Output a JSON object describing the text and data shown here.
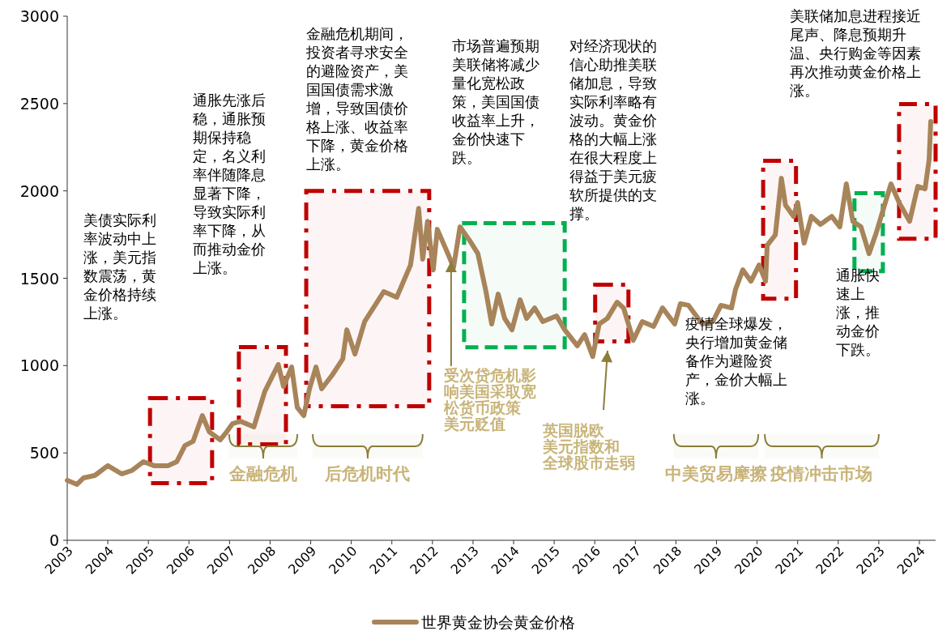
{
  "chart_data": {
    "type": "line",
    "xlim": [
      2003,
      2024.4
    ],
    "ylim": [
      0,
      3000
    ],
    "xticks": [
      2003,
      2004,
      2005,
      2006,
      2007,
      2008,
      2009,
      2010,
      2011,
      2012,
      2013,
      2014,
      2015,
      2016,
      2017,
      2018,
      2019,
      2020,
      2021,
      2022,
      2023,
      2024
    ],
    "yticks": [
      0,
      500,
      1000,
      1500,
      2000,
      2500,
      3000
    ],
    "legend": "bottom",
    "series": [
      {
        "name": "世界黄金协会黄金价格",
        "color": "#a8845a",
        "x": [
          2003.0,
          2003.24,
          2003.4,
          2003.68,
          2004.0,
          2004.34,
          2004.6,
          2004.88,
          2005.14,
          2005.48,
          2005.7,
          2005.9,
          2006.1,
          2006.33,
          2006.5,
          2006.77,
          2006.93,
          2007.07,
          2007.27,
          2007.6,
          2007.87,
          2008.2,
          2008.33,
          2008.53,
          2008.67,
          2008.83,
          2008.97,
          2009.13,
          2009.27,
          2009.53,
          2009.79,
          2009.89,
          2010.09,
          2010.33,
          2010.8,
          2011.12,
          2011.46,
          2011.66,
          2011.76,
          2011.88,
          2012.02,
          2012.12,
          2012.38,
          2012.52,
          2012.68,
          2012.92,
          2013.12,
          2013.32,
          2013.46,
          2013.62,
          2013.78,
          2013.96,
          2014.16,
          2014.32,
          2014.52,
          2014.72,
          2015.06,
          2015.26,
          2015.57,
          2015.75,
          2015.95,
          2016.11,
          2016.31,
          2016.55,
          2016.71,
          2016.95,
          2017.17,
          2017.45,
          2017.67,
          2017.97,
          2018.11,
          2018.31,
          2018.65,
          2018.91,
          2019.11,
          2019.37,
          2019.47,
          2019.65,
          2019.85,
          2020.05,
          2020.21,
          2020.25,
          2020.45,
          2020.6,
          2020.7,
          2020.9,
          2021.0,
          2021.16,
          2021.34,
          2021.56,
          2021.84,
          2022.04,
          2022.2,
          2022.36,
          2022.56,
          2022.76,
          2022.94,
          2023.1,
          2023.3,
          2023.5,
          2023.76,
          2023.96,
          2024.14,
          2024.24,
          2024.28
        ],
        "values": [
          343,
          320,
          357,
          371,
          427,
          380,
          400,
          450,
          427,
          427,
          450,
          542,
          566,
          714,
          621,
          575,
          621,
          667,
          681,
          649,
          853,
          1006,
          881,
          992,
          760,
          714,
          867,
          992,
          867,
          946,
          1038,
          1205,
          1066,
          1252,
          1423,
          1391,
          1576,
          1900,
          1609,
          1826,
          1548,
          1780,
          1641,
          1562,
          1794,
          1715,
          1641,
          1423,
          1238,
          1409,
          1270,
          1205,
          1377,
          1270,
          1330,
          1252,
          1284,
          1205,
          1113,
          1177,
          1052,
          1238,
          1270,
          1363,
          1330,
          1145,
          1252,
          1224,
          1330,
          1238,
          1354,
          1345,
          1238,
          1252,
          1345,
          1330,
          1437,
          1548,
          1483,
          1576,
          1483,
          1688,
          1748,
          2072,
          1919,
          1854,
          1933,
          1701,
          1854,
          1808,
          1854,
          1794,
          2040,
          1826,
          1794,
          1641,
          1762,
          1887,
          2040,
          1933,
          1826,
          2026,
          2012,
          2179,
          2397
        ]
      }
    ],
    "bands": [
      {
        "axis": "x",
        "from": 2005.04,
        "to": 2006.57,
        "color": "#c00000"
      },
      {
        "axis": "x",
        "from": 2007.23,
        "to": 2008.39,
        "color": "#c00000"
      },
      {
        "axis": "x",
        "from": 2008.89,
        "to": 2011.92,
        "color": "#c00000"
      },
      {
        "axis": "x",
        "from": 2012.78,
        "to": 2015.26,
        "color": "#00b050"
      },
      {
        "axis": "x",
        "from": 2016.01,
        "to": 2016.83,
        "color": "#c00000"
      },
      {
        "axis": "x",
        "from": 2020.15,
        "to": 2020.96,
        "color": "#c00000"
      },
      {
        "axis": "x",
        "from": 2022.4,
        "to": 2023.1,
        "color": "#00b050"
      },
      {
        "axis": "x",
        "from": 2023.5,
        "to": 2024.4,
        "color": "#c00000"
      },
      {
        "axis": "x",
        "from": 2006.99,
        "to": 2008.67,
        "label": "金融危机",
        "color": "#8b7d3a"
      },
      {
        "axis": "x",
        "from": 2009.05,
        "to": 2011.76,
        "label": "后危机时代",
        "color": "#8b7d3a"
      },
      {
        "axis": "x",
        "from": 2017.95,
        "to": 2020.03,
        "label": "中美贸易摩擦",
        "color": "#8b7d3a"
      },
      {
        "axis": "x",
        "from": 2020.19,
        "to": 2023.0,
        "label": "疫情冲击市场",
        "color": "#8b7d3a"
      }
    ],
    "annotations": [
      "美债实际利率波动中上涨，美元指数震荡，黄金价格持续上涨。",
      "通胀先涨后稳，通胀预期保持稳定，名义利率伴随降息显著下降，导致实际利率下降，从而推动金价上涨。",
      "金融危机期间，投资者寻求安全的避险资产，美国国债需求激增，导致国债价格上涨、收益率下降，黄金价格上涨。",
      "市场普遍预期美联储将减少量化宽松政策，美国国债收益率上升，金价快速下跌。",
      {
        "text": "受次贷危机影响美国采取宽松货币政策美元贬值",
        "x": 2012.46,
        "y": 1600
      },
      "对经济现状的信心助推美联储加息，导致实际利率略有波动。黄金价格的大幅上涨在很大程度上得益于美元疲软所提供的支撑。",
      "英国脱欧美元指数和全球股市走弱",
      "疫情全球爆发，央行增加黄金储备作为避险资产，金价大幅上涨。",
      "通胀快速上涨，推动金价下跌。",
      "美联储加息进程接近尾声、降息预期升温、央行购金等因素再次推动黄金价格上涨。"
    ]
  }
}
